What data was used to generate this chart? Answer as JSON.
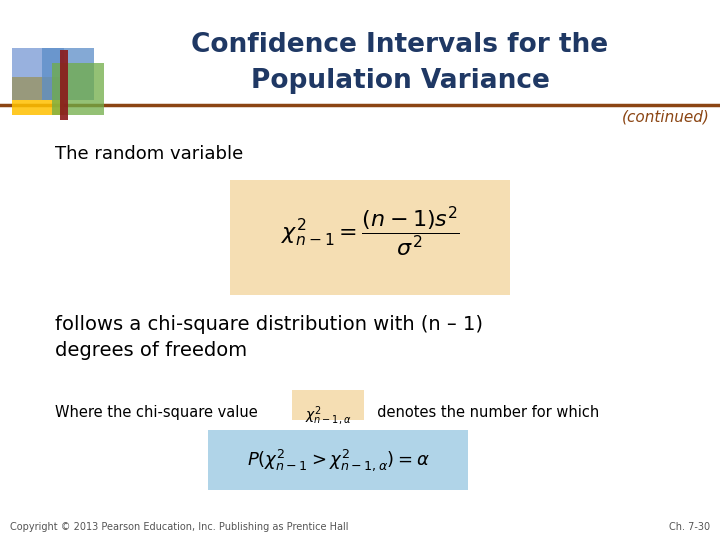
{
  "title_line1": "Confidence Intervals for the",
  "title_line2": "Population Variance",
  "title_color": "#1F3864",
  "continued_text": "(continued)",
  "continued_color": "#8B4513",
  "body_text_color": "#000000",
  "random_variable_text": "The random variable",
  "follows_text": "follows a chi-square distribution with (n – 1)\ndegrees of freedom",
  "where_text": "Where the chi-square value",
  "denotes_text": "  denotes the number for which",
  "formula_box_color": "#F5DEB3",
  "formula_box2_color": "#B0D4E8",
  "separator_color": "#8B4513",
  "bg_color": "#FFFFFF",
  "footer_left": "Copyright © 2013 Pearson Education, Inc. Publishing as Prentice Hall",
  "footer_right": "Ch. 7-30",
  "footer_color": "#555555"
}
